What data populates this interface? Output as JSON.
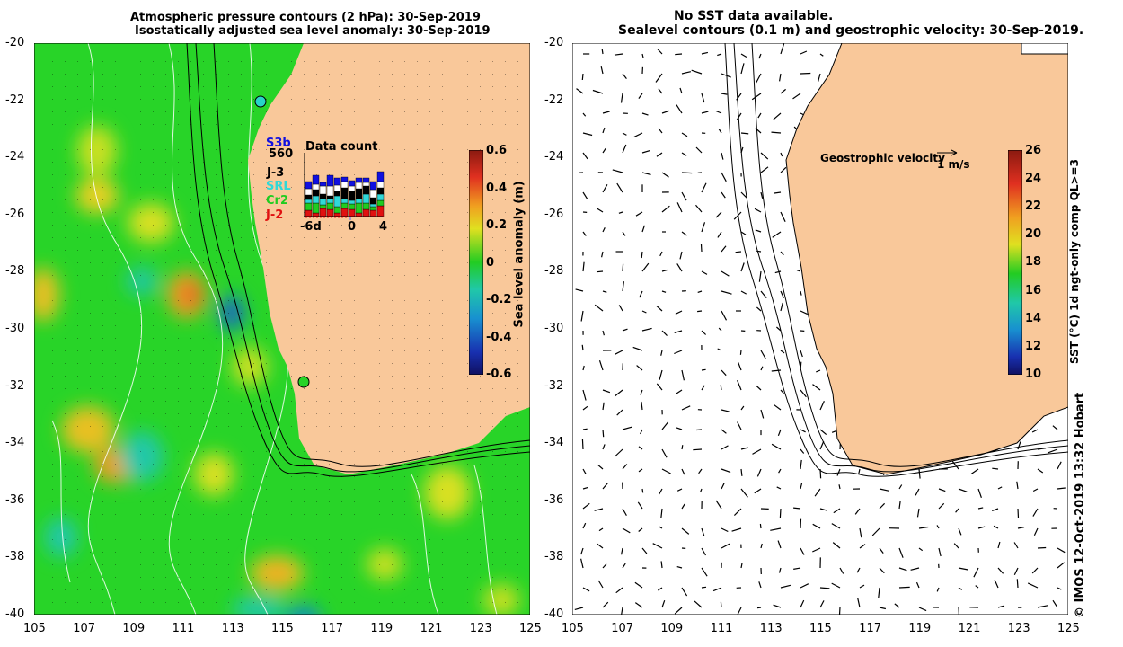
{
  "left_panel": {
    "title_line1": "Atmospheric pressure contours (2 hPa): 30-Sep-2019",
    "title_line2": "Isostatically adjusted sea level anomaly: 30-Sep-2019",
    "colorbar_label": "Sea level anomaly (m)",
    "colorbar_ticks": [
      "0.6",
      "0.4",
      "0.2",
      "0",
      "-0.2",
      "-0.4",
      "-0.6"
    ],
    "colors": {
      "land": "#f9c89a",
      "high": "#e0302c",
      "mid": "#22cc22",
      "low": "#1a1a9a"
    }
  },
  "right_panel": {
    "title_line1": "No SST data available.",
    "title_line2": "Sealevel contours (0.1 m) and geostrophic velocity: 30-Sep-2019.",
    "legend_label": "Geostrophic velocity",
    "legend_scale": "1 m/s",
    "colorbar_label": "SST (°C) 1d ngt-only comp QL>=3",
    "colorbar_ticks": [
      "26",
      "24",
      "22",
      "20",
      "18",
      "16",
      "14",
      "12",
      "10"
    ]
  },
  "axes": {
    "y_ticks": [
      "-20",
      "-22",
      "-24",
      "-26",
      "-28",
      "-30",
      "-32",
      "-34",
      "-36",
      "-38",
      "-40"
    ],
    "x_ticks": [
      "105",
      "107",
      "109",
      "111",
      "113",
      "115",
      "117",
      "119",
      "121",
      "123",
      "125"
    ]
  },
  "data_count": {
    "title": "Data count",
    "satellites": [
      {
        "name": "S3b",
        "color": "#1010e0"
      },
      {
        "name": "560",
        "color": "#000000"
      },
      {
        "name": "J-3",
        "color": "#000000"
      },
      {
        "name": "SRL",
        "color": "#30d8d8"
      },
      {
        "name": "Cr2",
        "color": "#20cc20"
      },
      {
        "name": "J-2",
        "color": "#e01010"
      }
    ],
    "x_labels": [
      "-6d",
      "0",
      "4"
    ]
  },
  "credit": "© IMOS 12-Oct-2019 13:32 Hobart"
}
